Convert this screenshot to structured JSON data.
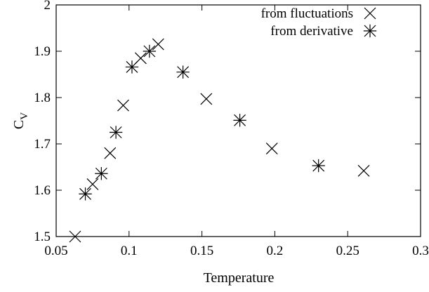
{
  "chart_data": {
    "type": "scatter",
    "xlabel": "Temperature",
    "ylabel": "C",
    "ylabel_subscript": "V",
    "xlim": [
      0.05,
      0.3
    ],
    "ylim": [
      1.5,
      2.0
    ],
    "xticks": [
      "0.05",
      "0.1",
      "0.15",
      "0.2",
      "0.25",
      "0.3"
    ],
    "yticks": [
      "1.5",
      "1.6",
      "1.7",
      "1.8",
      "1.9",
      "2"
    ],
    "grid": false,
    "legend_position": "top-right",
    "series": [
      {
        "name": "from fluctuations",
        "marker": "x",
        "x": [
          0.063,
          0.075,
          0.087,
          0.096,
          0.108,
          0.12,
          0.153,
          0.198,
          0.261
        ],
        "y": [
          1.5,
          1.613,
          1.68,
          1.783,
          1.885,
          1.915,
          1.797,
          1.69,
          1.642
        ]
      },
      {
        "name": "from derivative",
        "marker": "asterisk",
        "x": [
          0.07,
          0.081,
          0.091,
          0.102,
          0.114,
          0.137,
          0.176,
          0.23
        ],
        "y": [
          1.592,
          1.636,
          1.725,
          1.866,
          1.9,
          1.855,
          1.751,
          1.653
        ]
      }
    ]
  }
}
